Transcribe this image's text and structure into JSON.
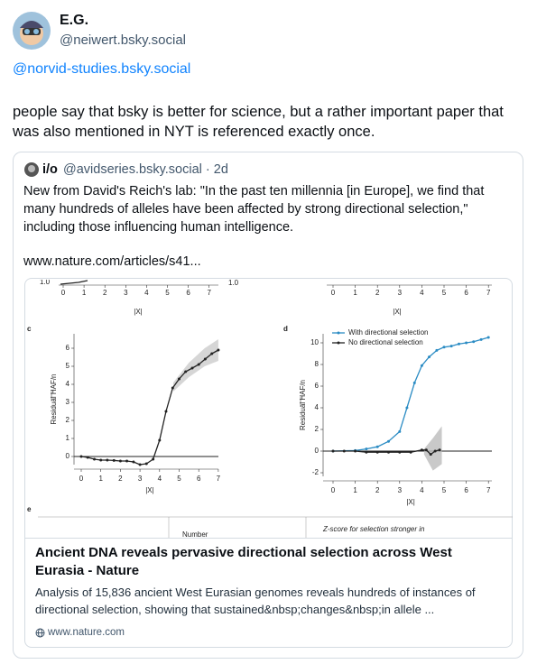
{
  "post": {
    "author": "E.G.",
    "handle": "@neiwert.bsky.social",
    "mention": "@norvid-studies.bsky.social",
    "text": "people say that bsky is better for science, but a rather important paper that was also mentioned in NYT is referenced exactly once."
  },
  "quote": {
    "author": "i/o",
    "handle": "@avidseries.bsky.social · 2d",
    "text": "New from David's Reich's lab: \"In the past ten millennia [in Europe], we find that many hundreds of alleles have been affected by strong directional selection,\" including those influencing human intelligence.",
    "url": "www.nature.com/articles/s41..."
  },
  "figure": {
    "top": {
      "left_label": "1.0",
      "right_label": "1.0",
      "xticks": [
        0,
        1,
        2,
        3,
        4,
        5,
        6,
        7
      ],
      "xlabel": "|X|"
    },
    "c": {
      "label": "c",
      "ylabel": "Residual HAF/n",
      "xlabel": "|X|",
      "xticks": [
        0,
        1,
        2,
        3,
        4,
        5,
        6,
        7
      ],
      "yticks": [
        0,
        1,
        2,
        3,
        4,
        5,
        6
      ],
      "x": [
        0,
        0.33,
        0.67,
        1,
        1.33,
        1.67,
        2,
        2.33,
        2.67,
        3,
        3.33,
        3.67,
        4,
        4.33,
        4.67,
        5,
        5.33,
        5.67,
        6,
        6.33,
        6.67,
        7
      ],
      "values": [
        0,
        -0.05,
        -0.15,
        -0.2,
        -0.2,
        -0.22,
        -0.25,
        -0.25,
        -0.3,
        -0.45,
        -0.4,
        -0.15,
        0.9,
        2.5,
        3.8,
        4.3,
        4.7,
        4.9,
        5.1,
        5.4,
        5.7,
        5.9
      ]
    },
    "d": {
      "label": "d",
      "ylabel": "Residual HAF/n",
      "xlabel": "|X|",
      "xticks": [
        0,
        1,
        2,
        3,
        4,
        5,
        6,
        7
      ],
      "yticks": [
        -2,
        0,
        2,
        4,
        6,
        8,
        10
      ],
      "series": [
        {
          "name": "With directional selection",
          "color": "#2b8cc4",
          "x": [
            0,
            1,
            1.5,
            2,
            2.5,
            3,
            3.33,
            3.67,
            4,
            4.33,
            4.67,
            5,
            5.33,
            5.67,
            6,
            6.33,
            6.67,
            7
          ],
          "values": [
            0,
            0.05,
            0.2,
            0.4,
            0.9,
            1.8,
            4,
            6.3,
            7.9,
            8.7,
            9.3,
            9.6,
            9.7,
            9.9,
            10,
            10.1,
            10.3,
            10.5
          ]
        },
        {
          "name": "No directional selection",
          "color": "#222222",
          "x": [
            0,
            0.5,
            1,
            1.5,
            2,
            2.5,
            3,
            3.5,
            4,
            4.2,
            4.4,
            4.6,
            4.8
          ],
          "values": [
            0,
            0,
            0,
            -0.1,
            -0.1,
            -0.1,
            -0.1,
            -0.1,
            0.1,
            0.1,
            -0.3,
            0,
            0.1
          ]
        }
      ]
    },
    "e": {
      "label": "e",
      "col1": "Number",
      "col2": "Z-score for selection stronger in"
    }
  },
  "link_card": {
    "title": "Ancient DNA reveals pervasive directional selection across West Eurasia - Nature",
    "description": "Analysis of 15,836 ancient West Eurasian genomes reveals hundreds of instances of directional selection, showing that sustained&nbsp;changes&nbsp;in allele ...",
    "domain": "www.nature.com"
  }
}
